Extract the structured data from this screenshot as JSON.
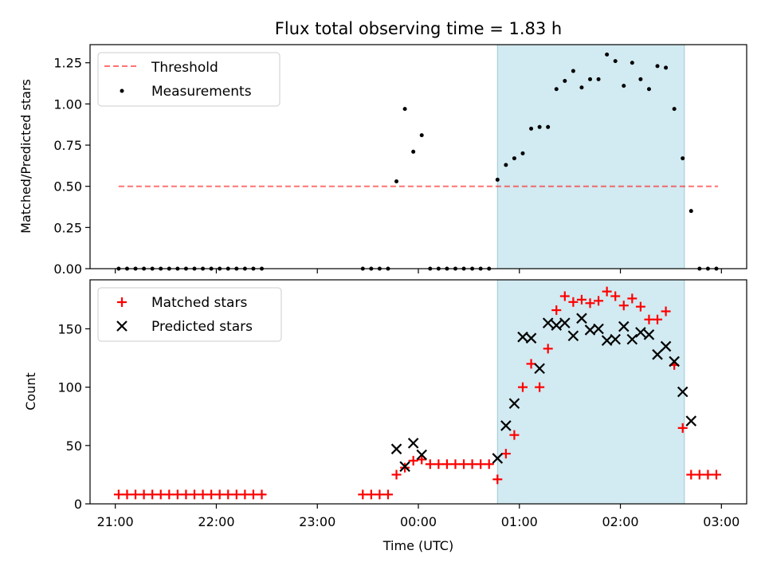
{
  "title": "Flux total observing time = 1.83 h",
  "highlight_color": "#add8e6",
  "chart_data": [
    {
      "type": "scatter",
      "ylabel": "Matched/Predicted stars",
      "xlabel": "",
      "xlim": [
        "20:45",
        "03:15"
      ],
      "ylim": [
        0,
        1.36
      ],
      "yticks": [
        0.0,
        0.25,
        0.5,
        0.75,
        1.0,
        1.25
      ],
      "ytick_labels": [
        "0.00",
        "0.25",
        "0.50",
        "0.75",
        "1.00",
        "1.25"
      ],
      "highlight_span": [
        "00:47",
        "02:38"
      ],
      "legend_position": "top-left",
      "threshold": {
        "name": "Threshold",
        "value": 0.5,
        "x_range": [
          "21:02",
          "02:58"
        ],
        "color": "#ff0000",
        "style": "dashed"
      },
      "series": [
        {
          "name": "Measurements",
          "marker": "dot",
          "color": "#000000",
          "x": [
            "21:02",
            "21:07",
            "21:12",
            "21:17",
            "21:22",
            "21:27",
            "21:32",
            "21:37",
            "21:42",
            "21:47",
            "21:52",
            "21:57",
            "22:02",
            "22:07",
            "22:12",
            "22:17",
            "22:22",
            "22:27",
            "23:27",
            "23:32",
            "23:37",
            "23:42",
            "23:47",
            "23:52",
            "23:57",
            "00:02",
            "00:07",
            "00:12",
            "00:17",
            "00:22",
            "00:27",
            "00:32",
            "00:37",
            "00:42",
            "00:47",
            "00:52",
            "00:57",
            "01:02",
            "01:07",
            "01:12",
            "01:17",
            "01:22",
            "01:27",
            "01:32",
            "01:37",
            "01:42",
            "01:47",
            "01:52",
            "01:57",
            "02:02",
            "02:07",
            "02:12",
            "02:17",
            "02:22",
            "02:27",
            "02:32",
            "02:37",
            "02:42",
            "02:47",
            "02:52",
            "02:57"
          ],
          "y": [
            0,
            0,
            0,
            0,
            0,
            0,
            0,
            0,
            0,
            0,
            0,
            0,
            0,
            0,
            0,
            0,
            0,
            0,
            0,
            0,
            0,
            0,
            0.53,
            0.97,
            0.71,
            0.81,
            0,
            0,
            0,
            0,
            0,
            0,
            0,
            0,
            0.54,
            0.63,
            0.67,
            0.7,
            0.85,
            0.86,
            0.86,
            1.09,
            1.14,
            1.2,
            1.1,
            1.15,
            1.15,
            1.3,
            1.26,
            1.11,
            1.25,
            1.15,
            1.09,
            1.23,
            1.22,
            0.97,
            0.67,
            0.35,
            0,
            0,
            0
          ]
        }
      ]
    },
    {
      "type": "scatter",
      "ylabel": "Count",
      "xlabel": "Time (UTC)",
      "xlim": [
        "20:45",
        "03:15"
      ],
      "ylim": [
        0,
        192
      ],
      "yticks": [
        0,
        50,
        100,
        150
      ],
      "xticks": [
        "21:00",
        "22:00",
        "23:00",
        "00:00",
        "01:00",
        "02:00",
        "03:00"
      ],
      "highlight_span": [
        "00:47",
        "02:38"
      ],
      "legend_position": "top-left",
      "series": [
        {
          "name": "Matched stars",
          "marker": "plus",
          "color": "#ff0000",
          "x": [
            "21:02",
            "21:07",
            "21:12",
            "21:17",
            "21:22",
            "21:27",
            "21:32",
            "21:37",
            "21:42",
            "21:47",
            "21:52",
            "21:57",
            "22:02",
            "22:07",
            "22:12",
            "22:17",
            "22:22",
            "22:27",
            "23:27",
            "23:32",
            "23:37",
            "23:42",
            "23:47",
            "23:52",
            "23:57",
            "00:02",
            "00:07",
            "00:12",
            "00:17",
            "00:22",
            "00:27",
            "00:32",
            "00:37",
            "00:42",
            "00:47",
            "00:52",
            "00:57",
            "01:02",
            "01:07",
            "01:12",
            "01:17",
            "01:22",
            "01:27",
            "01:32",
            "01:37",
            "01:42",
            "01:47",
            "01:52",
            "01:57",
            "02:02",
            "02:07",
            "02:12",
            "02:17",
            "02:22",
            "02:27",
            "02:32",
            "02:37",
            "02:42",
            "02:47",
            "02:52",
            "02:57"
          ],
          "y": [
            8,
            8,
            8,
            8,
            8,
            8,
            8,
            8,
            8,
            8,
            8,
            8,
            8,
            8,
            8,
            8,
            8,
            8,
            8,
            8,
            8,
            8,
            25,
            31,
            37,
            38,
            34,
            34,
            34,
            34,
            34,
            34,
            34,
            34,
            21,
            43,
            59,
            100,
            120,
            100,
            133,
            166,
            178,
            173,
            175,
            172,
            174,
            182,
            178,
            170,
            176,
            169,
            158,
            158,
            165,
            119,
            65,
            25,
            25,
            25,
            25
          ]
        },
        {
          "name": "Predicted stars",
          "marker": "x",
          "color": "#000000",
          "x": [
            "23:47",
            "23:52",
            "23:57",
            "00:02",
            "00:47",
            "00:52",
            "00:57",
            "01:02",
            "01:07",
            "01:12",
            "01:17",
            "01:22",
            "01:27",
            "01:32",
            "01:37",
            "01:42",
            "01:47",
            "01:52",
            "01:57",
            "02:02",
            "02:07",
            "02:12",
            "02:17",
            "02:22",
            "02:27",
            "02:32",
            "02:37",
            "02:42"
          ],
          "y": [
            47,
            32,
            52,
            42,
            39,
            67,
            86,
            143,
            142,
            116,
            155,
            153,
            155,
            144,
            159,
            149,
            150,
            140,
            141,
            152,
            141,
            147,
            145,
            128,
            135,
            122,
            96,
            71
          ]
        }
      ]
    }
  ]
}
